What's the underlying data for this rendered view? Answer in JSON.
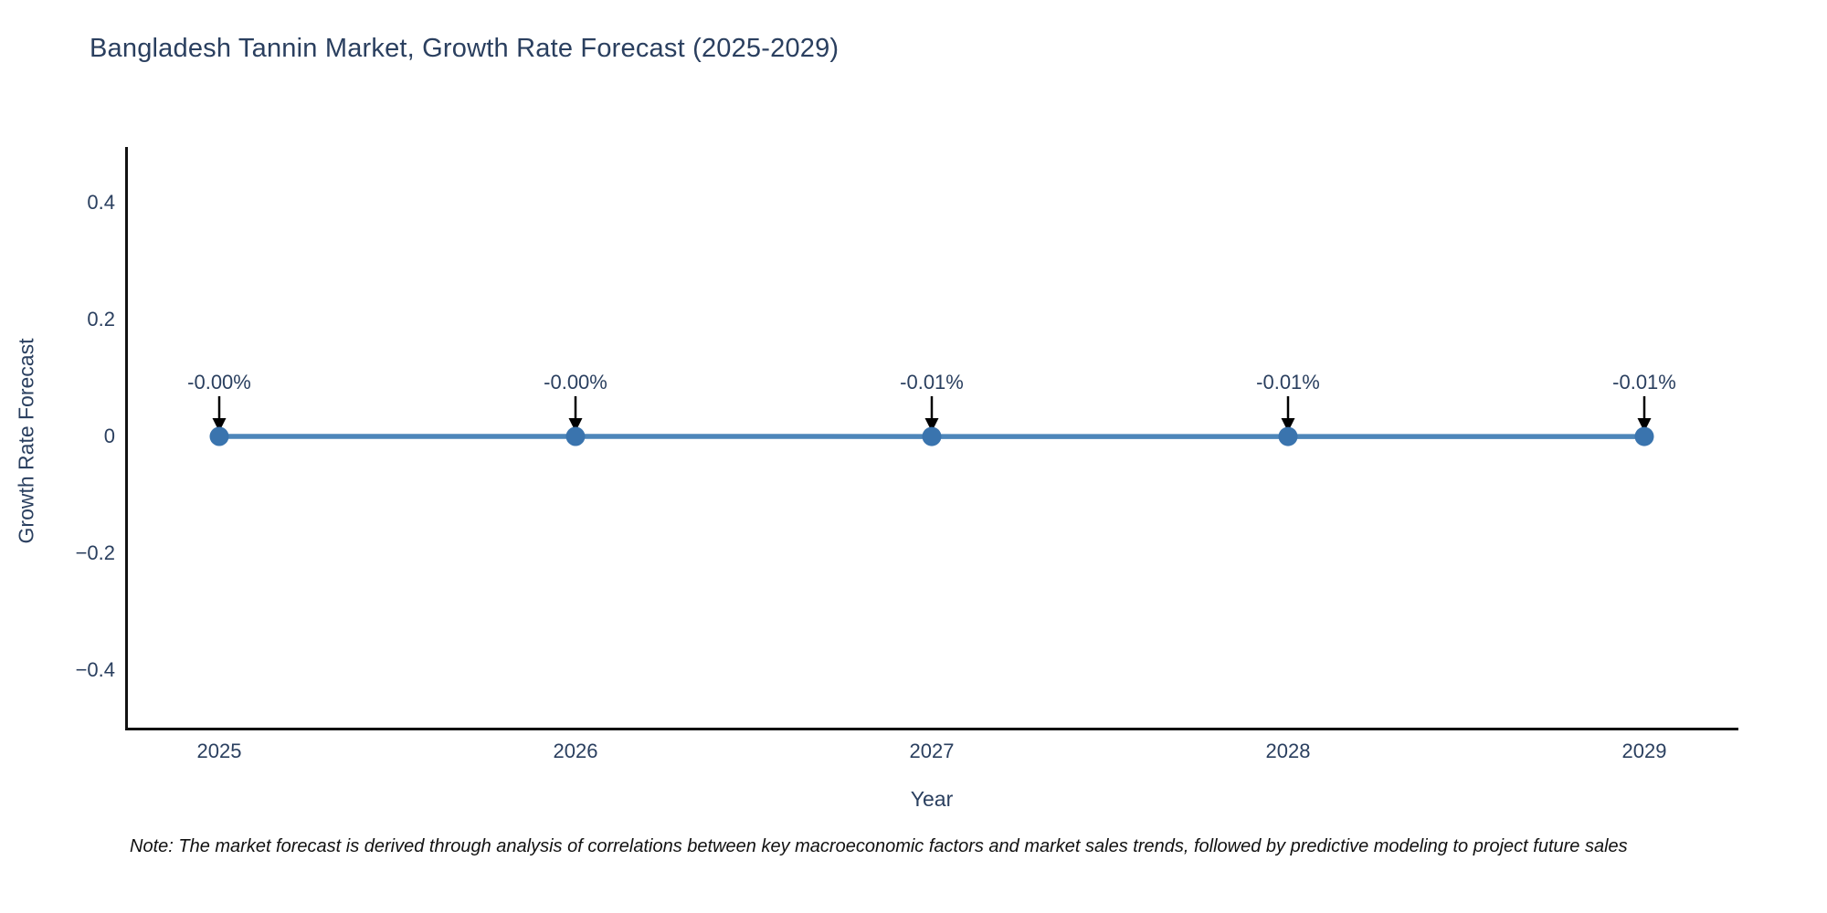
{
  "title": "Bangladesh Tannin Market, Growth Rate Forecast (2025-2029)",
  "note": "Note: The market forecast is derived through analysis of correlations between key macroeconomic factors and market sales trends, followed by predictive modeling to project future sales",
  "colors": {
    "line": "#4d86ba",
    "marker": "#3a74ae",
    "axis_line": "#111111",
    "text_primary": "#2a3f5f",
    "annotation_arrow": "#000000",
    "note_text": "#111111"
  },
  "chart_data": {
    "type": "line",
    "title": "Bangladesh Tannin Market, Growth Rate Forecast (2025-2029)",
    "xlabel": "Year",
    "ylabel": "Growth Rate Forecast",
    "categories": [
      2025,
      2026,
      2027,
      2028,
      2029
    ],
    "series": [
      {
        "name": "Growth Rate Forecast",
        "values": [
          -0.0,
          -0.0,
          -0.0001,
          -0.0001,
          -0.0001
        ],
        "point_labels": [
          "-0.00%",
          "-0.00%",
          "-0.01%",
          "-0.01%",
          "-0.01%"
        ]
      }
    ],
    "y_ticks": [
      0.4,
      0.2,
      0,
      -0.2,
      -0.4
    ],
    "ylim": [
      -0.5,
      0.5
    ],
    "grid": false,
    "legend": "none",
    "annotations_have_arrows": true
  }
}
